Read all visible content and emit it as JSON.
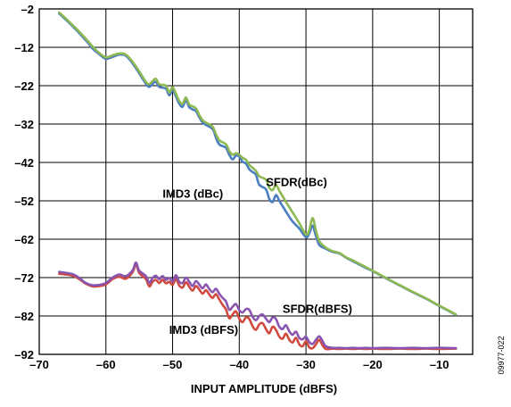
{
  "chart_data": {
    "type": "line",
    "xlabel": "INPUT AMPLITUDE (dBFS)",
    "ylabel": "",
    "xlim": [
      -70,
      -5
    ],
    "ylim": [
      -92,
      -2
    ],
    "xticks": [
      "–70",
      "–60",
      "–50",
      "–40",
      "–30",
      "–20",
      "–10"
    ],
    "yticks": [
      "–2",
      "–12",
      "–22",
      "–32",
      "–42",
      "–52",
      "–62",
      "–72",
      "–82",
      "–92"
    ],
    "grid": true,
    "annotations": [
      {
        "text": "SFDR(dBc)",
        "x": -36,
        "y": -47
      },
      {
        "text": "IMD3 (dBc)",
        "x": -51.5,
        "y": -50
      },
      {
        "text": "SFDR(dBFS)",
        "x": -33.5,
        "y": -80
      },
      {
        "text": "IMD3 (dBFS)",
        "x": -50.5,
        "y": -85.5
      }
    ],
    "figure_code": "09977-022",
    "series": [
      {
        "color": "#4a7ec0",
        "x": [
          -67,
          -65,
          -63,
          -62,
          -61,
          -60,
          -59,
          -58,
          -57,
          -56,
          -55,
          -54,
          -53.5,
          -53,
          -52.5,
          -52,
          -51,
          -50.5,
          -50,
          -49.5,
          -49,
          -48.5,
          -48,
          -47.5,
          -47,
          -46.5,
          -46,
          -45.5,
          -45,
          -44,
          -43.5,
          -43,
          -42,
          -41.5,
          -41,
          -40.5,
          -40,
          -39.5,
          -39,
          -38.5,
          -38,
          -37.5,
          -37,
          -36,
          -35.5,
          -35,
          -34.5,
          -34,
          -33.5,
          -33,
          -32,
          -31,
          -30,
          -29.5,
          -29,
          -28.5,
          -28,
          -27,
          -26,
          -25,
          -24,
          -23,
          -22,
          -21,
          -20,
          -18,
          -16,
          -14,
          -12,
          -10,
          -7.5
        ],
        "values": [
          -3.2,
          -6.5,
          -10.2,
          -12.3,
          -13.8,
          -15,
          -14.5,
          -13.9,
          -14.2,
          -16.2,
          -18.8,
          -21.5,
          -22.3,
          -21.5,
          -21,
          -22.3,
          -22.8,
          -24.5,
          -23.2,
          -24.8,
          -26.7,
          -27.5,
          -25.8,
          -27.6,
          -28.2,
          -28.6,
          -30.2,
          -31.6,
          -32.2,
          -33.3,
          -35.5,
          -37.3,
          -38.2,
          -40,
          -41.2,
          -40.2,
          -40.5,
          -41.8,
          -42.3,
          -43.8,
          -44.5,
          -45.2,
          -47.8,
          -49,
          -51.5,
          -52.3,
          -50.5,
          -52,
          -53.4,
          -54.8,
          -57.4,
          -59.2,
          -61.5,
          -60.5,
          -58.5,
          -61.2,
          -63.5,
          -64.5,
          -65.3,
          -65.7,
          -66.8,
          -67.7,
          -68.6,
          -69.5,
          -70.3,
          -72.2,
          -74,
          -75.8,
          -77.5,
          -79.4,
          -81.7
        ]
      },
      {
        "color": "#8db852",
        "x": [
          -67,
          -65,
          -63,
          -62,
          -61,
          -60,
          -59,
          -58,
          -57,
          -56,
          -55,
          -54,
          -53.5,
          -53,
          -52.5,
          -52,
          -51,
          -50.5,
          -50,
          -49.5,
          -49,
          -48.5,
          -48,
          -47.5,
          -47,
          -46.5,
          -46,
          -45.5,
          -45,
          -44,
          -43.5,
          -43,
          -42,
          -41.5,
          -41,
          -40.5,
          -40,
          -39.5,
          -39,
          -38.5,
          -38,
          -37.5,
          -37,
          -36,
          -35.5,
          -35,
          -34.5,
          -34,
          -33.5,
          -33,
          -32,
          -31,
          -30,
          -29.5,
          -29,
          -28.5,
          -28,
          -27,
          -26,
          -25,
          -24,
          -23,
          -22,
          -21,
          -20,
          -18,
          -16,
          -14,
          -12,
          -10,
          -7.5
        ],
        "values": [
          -2.9,
          -6.2,
          -9.8,
          -11.8,
          -13.5,
          -14.6,
          -14.1,
          -13.6,
          -13.9,
          -15.8,
          -18.3,
          -21,
          -21.6,
          -20.8,
          -20.2,
          -21.6,
          -22,
          -23.8,
          -22.4,
          -24.1,
          -26,
          -26.7,
          -25.1,
          -26.9,
          -27.4,
          -27.9,
          -29.6,
          -31,
          -31.6,
          -32.7,
          -34.6,
          -36.2,
          -37.3,
          -39,
          -40,
          -39.6,
          -40,
          -40.8,
          -41.3,
          -42.6,
          -43.4,
          -44.2,
          -45.6,
          -46.5,
          -48.6,
          -49.2,
          -47.8,
          -49.4,
          -50.8,
          -52.3,
          -55,
          -57.8,
          -60.8,
          -59.6,
          -56.5,
          -59.8,
          -62.5,
          -64.2,
          -65.1,
          -65.6,
          -66.7,
          -67.5,
          -68.4,
          -69.3,
          -70.2,
          -72.1,
          -73.9,
          -75.7,
          -77.4,
          -79.3,
          -81.6
        ]
      },
      {
        "color": "#d04a3f",
        "x": [
          -67,
          -65,
          -64,
          -63,
          -62,
          -61,
          -60,
          -59,
          -58,
          -57,
          -56,
          -55.5,
          -55,
          -54,
          -53.5,
          -53,
          -52.5,
          -52,
          -51.5,
          -51,
          -50.5,
          -50,
          -49.5,
          -49,
          -48.5,
          -48,
          -47.5,
          -47,
          -46.5,
          -46,
          -45.5,
          -45,
          -44.5,
          -44,
          -43.5,
          -43,
          -42.5,
          -42,
          -41.5,
          -41,
          -40.5,
          -40,
          -39.5,
          -39,
          -38.5,
          -38,
          -37.5,
          -37,
          -36.5,
          -36,
          -35.5,
          -35,
          -34.5,
          -34,
          -33.5,
          -33,
          -32.5,
          -32,
          -31.5,
          -31,
          -30.5,
          -30,
          -29.5,
          -29,
          -28.5,
          -28,
          -27.5,
          -27,
          -26,
          -25,
          -24,
          -23,
          -22,
          -21,
          -20,
          -18,
          -16,
          -14,
          -12,
          -10,
          -7.5
        ],
        "values": [
          -71,
          -71.5,
          -72.4,
          -73.6,
          -74.3,
          -74.2,
          -73.8,
          -72.4,
          -71.8,
          -72.3,
          -70.6,
          -68.6,
          -70.8,
          -72.4,
          -74.3,
          -73.1,
          -72.6,
          -73.4,
          -72.6,
          -73.5,
          -73.1,
          -73.9,
          -72.4,
          -74.1,
          -74.6,
          -73.2,
          -74.4,
          -75.4,
          -74.2,
          -75.1,
          -76.2,
          -75.3,
          -76.4,
          -77.3,
          -76.3,
          -77.7,
          -79.1,
          -80.3,
          -82.6,
          -81.6,
          -80.8,
          -82.7,
          -83.6,
          -82.4,
          -82.8,
          -84.7,
          -85.6,
          -84.2,
          -83.9,
          -85.4,
          -86.5,
          -84.8,
          -85.6,
          -87.4,
          -87.9,
          -86.6,
          -88.2,
          -88.9,
          -87.7,
          -89.4,
          -89.9,
          -88.6,
          -90.2,
          -90.4,
          -89.4,
          -88.2,
          -89.7,
          -90.6,
          -90.5,
          -90.6,
          -90.5,
          -90.6,
          -90.5,
          -90.6,
          -90.5,
          -90.6,
          -90.5,
          -90.6,
          -90.5,
          -90.6,
          -90.5
        ]
      },
      {
        "color": "#8a55b0",
        "x": [
          -67,
          -65,
          -64,
          -63,
          -62,
          -61,
          -60,
          -59,
          -58,
          -57,
          -56,
          -55.5,
          -55,
          -54,
          -53.5,
          -53,
          -52.5,
          -52,
          -51.5,
          -51,
          -50.5,
          -50,
          -49.5,
          -49,
          -48.5,
          -48,
          -47.5,
          -47,
          -46.5,
          -46,
          -45.5,
          -45,
          -44.5,
          -44,
          -43.5,
          -43,
          -42.5,
          -42,
          -41.5,
          -41,
          -40.5,
          -40,
          -39.5,
          -39,
          -38.5,
          -38,
          -37.5,
          -37,
          -36.5,
          -36,
          -35.5,
          -35,
          -34.5,
          -34,
          -33.5,
          -33,
          -32.5,
          -32,
          -31.5,
          -31,
          -30.5,
          -30,
          -29.5,
          -29,
          -28.5,
          -28,
          -27.5,
          -27,
          -26,
          -25,
          -24,
          -23,
          -22,
          -21,
          -20,
          -18,
          -16,
          -14,
          -12,
          -10,
          -7.5
        ],
        "values": [
          -70.5,
          -71.1,
          -72.1,
          -73.4,
          -74,
          -73.9,
          -73.4,
          -72,
          -71.2,
          -71.6,
          -70.1,
          -68.1,
          -70.2,
          -71.6,
          -73.4,
          -72.1,
          -71.5,
          -72.4,
          -71.6,
          -72.6,
          -72.1,
          -73,
          -71.4,
          -73.1,
          -73.4,
          -72,
          -73.1,
          -74.2,
          -72.9,
          -73.8,
          -74.8,
          -73.8,
          -75,
          -75.8,
          -74.9,
          -76.2,
          -77.3,
          -78.2,
          -80.4,
          -79.6,
          -78.9,
          -80.5,
          -81.1,
          -80.2,
          -80.4,
          -82.2,
          -83.1,
          -82,
          -81.6,
          -82.7,
          -83.6,
          -82.4,
          -82.8,
          -84.8,
          -85.4,
          -84.4,
          -86,
          -86.9,
          -86.1,
          -87.7,
          -88.1,
          -87.4,
          -88.8,
          -89.3,
          -88.2,
          -87.3,
          -88.6,
          -89.9,
          -90.3,
          -90.3,
          -90.4,
          -90.3,
          -90.4,
          -90.3,
          -90.4,
          -90.3,
          -90.4,
          -90.3,
          -90.4,
          -90.3,
          -90.4
        ]
      }
    ]
  }
}
